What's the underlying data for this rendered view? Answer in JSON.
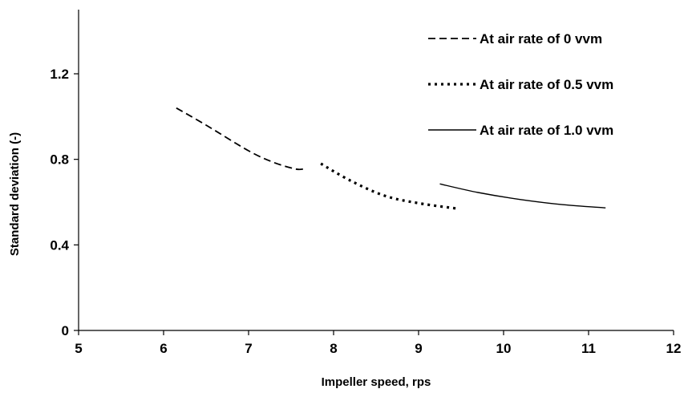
{
  "chart_data": {
    "type": "line",
    "title": "",
    "xlabel": "Impeller speed,  rps",
    "ylabel": "Standard deviation  (-)",
    "xlim": [
      5,
      12
    ],
    "ylim": [
      0,
      1.5
    ],
    "x_ticks": [
      5,
      6,
      7,
      8,
      9,
      10,
      11,
      12
    ],
    "x_tick_labels": [
      "5",
      "6",
      "7",
      "8",
      "9",
      "10",
      "11",
      "12"
    ],
    "y_ticks": [
      0,
      0.4,
      0.8,
      1.2
    ],
    "y_tick_labels": [
      "0",
      "0.4",
      "0.8",
      "1.2"
    ],
    "grid": false,
    "legend_position": "top-right",
    "series": [
      {
        "name": "At air rate of 0 vvm",
        "style": "dashed",
        "color": "#000000",
        "x": [
          6.15,
          6.5,
          7.0,
          7.3,
          7.55,
          7.65
        ],
        "y": [
          1.04,
          0.96,
          0.84,
          0.785,
          0.755,
          0.755
        ]
      },
      {
        "name": "At air rate of 0.5 vvm",
        "style": "dotted",
        "color": "#000000",
        "x": [
          7.85,
          8.2,
          8.6,
          9.0,
          9.45
        ],
        "y": [
          0.78,
          0.7,
          0.63,
          0.595,
          0.57
        ]
      },
      {
        "name": "At air rate of 1.0 vvm",
        "style": "solid",
        "color": "#000000",
        "x": [
          9.25,
          9.7,
          10.2,
          10.7,
          11.2
        ],
        "y": [
          0.685,
          0.645,
          0.612,
          0.588,
          0.573
        ]
      }
    ]
  }
}
